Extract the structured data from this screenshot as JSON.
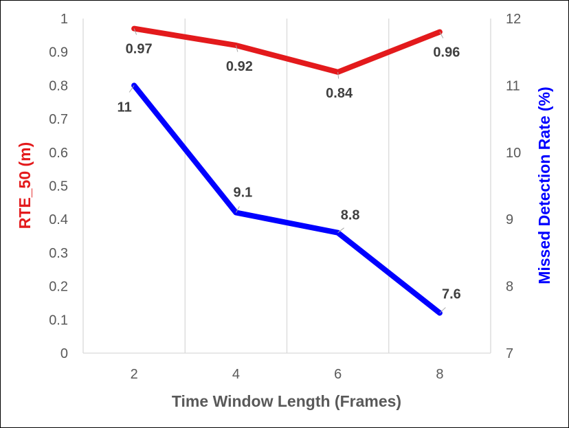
{
  "chart_data": {
    "type": "line",
    "xlabel": "Time Window Length (Frames)",
    "ylabel_left": "RTE_50 (m)",
    "ylabel_right": "Missed Detection Rate (%)",
    "x": [
      2,
      4,
      6,
      8
    ],
    "x_ticks": [
      "2",
      "4",
      "6",
      "8"
    ],
    "ylim_left": [
      0,
      1
    ],
    "yticks_left": [
      "0",
      "0.1",
      "0.2",
      "0.3",
      "0.4",
      "0.5",
      "0.6",
      "0.7",
      "0.8",
      "0.9",
      "1"
    ],
    "ylim_right": [
      7,
      12
    ],
    "yticks_right": [
      "7",
      "8",
      "9",
      "10",
      "11",
      "12"
    ],
    "grid": "vertical",
    "series": [
      {
        "axis": "left",
        "color": "#e31a1c",
        "values": [
          0.97,
          0.92,
          0.84,
          0.96
        ],
        "labels": [
          "0.97",
          "0.92",
          "0.84",
          "0.96"
        ]
      },
      {
        "axis": "right",
        "color": "#0000ff",
        "values": [
          11,
          9.1,
          8.8,
          7.6
        ],
        "labels": [
          "11",
          "9.1",
          "8.8",
          "7.6"
        ]
      }
    ]
  }
}
